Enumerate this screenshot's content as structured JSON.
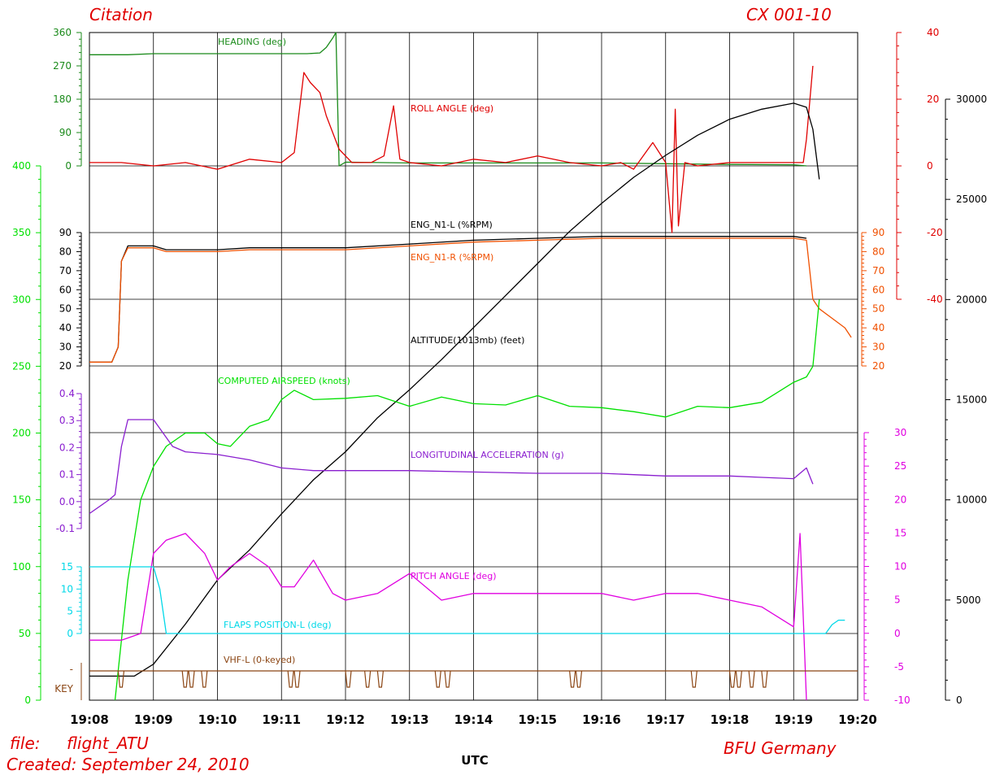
{
  "header": {
    "title_left": "Citation",
    "title_right": "CX  001-10",
    "file_prefix": "file:",
    "file_name": "flight_ATU",
    "created": "Created:  September  24,  2010",
    "footer_right": "BFU  Germany"
  },
  "colors": {
    "heading": "#1a8a1a",
    "roll": "#e00000",
    "n1l": "#000000",
    "n1r": "#f05000",
    "altitude": "#000000",
    "airspeed": "#00e000",
    "longacc": "#8a1ecf",
    "pitch": "#e000e0",
    "flaps": "#00d8e8",
    "vhf": "#8b4513",
    "grid": "#000000"
  },
  "chart_data": {
    "type": "line",
    "xlabel": "UTC",
    "x_ticks": [
      "19:08",
      "19:09",
      "19:10",
      "19:11",
      "19:12",
      "19:13",
      "19:14",
      "19:15",
      "19:16",
      "19:17",
      "19:18",
      "19:19",
      "19:20"
    ],
    "x_range_min": [
      0,
      12
    ],
    "axes": {
      "heading": {
        "ticks": [
          "360",
          "270",
          "180",
          "90",
          "0"
        ],
        "range": [
          0,
          360
        ]
      },
      "airspeed": {
        "ticks": [
          "400",
          "350",
          "300",
          "250",
          "200",
          "150",
          "100",
          "50",
          "0"
        ],
        "range": [
          0,
          400
        ]
      },
      "n1": {
        "ticks": [
          "90",
          "80",
          "70",
          "60",
          "50",
          "40",
          "30",
          "20"
        ],
        "range": [
          20,
          90
        ]
      },
      "longacc": {
        "ticks": [
          "0.4",
          "0.3",
          "0.2",
          "0.1",
          "0.0",
          "-0.1"
        ],
        "range": [
          -0.1,
          0.4
        ]
      },
      "flaps": {
        "ticks": [
          "15",
          "10",
          "5",
          "0"
        ],
        "range": [
          0,
          15
        ]
      },
      "vhf": {
        "key_label": "KEY",
        "mark": "-"
      },
      "roll": {
        "ticks": [
          "40",
          "20",
          "0",
          "-20",
          "-40"
        ],
        "range": [
          -40,
          40
        ]
      },
      "n1r": {
        "ticks": [
          "90",
          "80",
          "70",
          "60",
          "50",
          "40",
          "30",
          "20"
        ],
        "range": [
          20,
          90
        ]
      },
      "pitch": {
        "ticks": [
          "30",
          "25",
          "20",
          "15",
          "10",
          "5",
          "0",
          "-5",
          "-10"
        ],
        "range": [
          -10,
          30
        ]
      },
      "altitude": {
        "ticks": [
          "30000",
          "25000",
          "20000",
          "15000",
          "10000",
          "5000",
          "0"
        ],
        "range": [
          0,
          30000
        ]
      }
    },
    "series": [
      {
        "key": "heading",
        "name": "HEADING (deg)",
        "x": [
          0,
          0.6,
          1.0,
          2,
          3,
          3.4,
          3.6,
          3.7,
          3.8,
          3.85,
          3.9,
          4.0,
          5,
          7,
          8,
          9,
          10,
          11,
          11.2
        ],
        "y": [
          300,
          300,
          303,
          303,
          303,
          303,
          305,
          320,
          345,
          360,
          0,
          10,
          8,
          8,
          8,
          6,
          4,
          3,
          0
        ]
      },
      {
        "key": "roll",
        "name": "ROLL  ANGLE  (deg)",
        "x": [
          0,
          0.5,
          1.0,
          1.5,
          2.0,
          2.5,
          3.0,
          3.2,
          3.35,
          3.45,
          3.6,
          3.7,
          3.9,
          4.1,
          4.4,
          4.6,
          4.75,
          4.85,
          5.0,
          5.5,
          6.0,
          6.5,
          7.0,
          7.5,
          8.0,
          8.3,
          8.5,
          8.8,
          9.0,
          9.1,
          9.15,
          9.2,
          9.3,
          9.5,
          10,
          10.5,
          11,
          11.15,
          11.2,
          11.3
        ],
        "y": [
          1,
          1,
          0,
          1,
          -1,
          2,
          1,
          4,
          28,
          25,
          22,
          15,
          5,
          1,
          1,
          3,
          18,
          2,
          1,
          0,
          2,
          1,
          3,
          1,
          0,
          1,
          -1,
          7,
          1,
          -20,
          17,
          -18,
          1,
          0,
          1,
          1,
          1,
          1,
          8,
          30
        ]
      },
      {
        "key": "n1l",
        "name": "ENG_N1-L  (%RPM)",
        "x": [
          0,
          0.35,
          0.45,
          0.5,
          0.6,
          1.0,
          1.2,
          1.6,
          2.0,
          2.5,
          3.0,
          3.5,
          4,
          5,
          6,
          7,
          8,
          9,
          10,
          11,
          11.2
        ],
        "y": [
          22,
          22,
          30,
          75,
          83,
          83,
          81,
          81,
          81,
          82,
          82,
          82,
          82,
          84,
          86,
          87,
          88,
          88,
          88,
          88,
          87
        ]
      },
      {
        "key": "n1r",
        "name": "ENG_N1-R  (%RPM)",
        "x": [
          0,
          0.35,
          0.45,
          0.5,
          0.6,
          1.0,
          1.2,
          1.6,
          2.0,
          2.5,
          3.0,
          3.5,
          4,
          5,
          6,
          7,
          8,
          9,
          10,
          11,
          11.2,
          11.3,
          11.4,
          11.6,
          11.8,
          11.9
        ],
        "y": [
          22,
          22,
          30,
          75,
          82,
          82,
          80,
          80,
          80,
          81,
          81,
          81,
          81,
          83,
          85,
          86,
          87,
          87,
          87,
          87,
          86,
          55,
          50,
          45,
          40,
          35
        ]
      },
      {
        "key": "altitude",
        "name": "ALTITUDE(1013mb)  (feet)",
        "x": [
          0,
          0.7,
          1.0,
          1.5,
          2.0,
          2.5,
          3.0,
          3.5,
          4,
          4.5,
          5,
          5.5,
          6,
          6.5,
          7,
          7.5,
          8,
          8.5,
          9,
          9.5,
          10,
          10.5,
          11,
          11.2,
          11.3,
          11.4
        ],
        "y": [
          1200,
          1200,
          1800,
          3800,
          6000,
          7500,
          9300,
          11000,
          12400,
          14100,
          15500,
          17000,
          18600,
          20200,
          21800,
          23400,
          24800,
          26100,
          27200,
          28200,
          29000,
          29500,
          29800,
          29600,
          28500,
          26000
        ]
      },
      {
        "key": "airspeed",
        "name": "COMPUTED  AIRSPEED  (knots)",
        "x": [
          0.4,
          0.6,
          0.8,
          1.0,
          1.2,
          1.5,
          1.8,
          2.0,
          2.2,
          2.5,
          2.8,
          3.0,
          3.2,
          3.5,
          4,
          4.5,
          5,
          5.5,
          6,
          6.5,
          7,
          7.5,
          8,
          8.5,
          9,
          9.5,
          10,
          10.5,
          11,
          11.2,
          11.3,
          11.4
        ],
        "y": [
          0,
          90,
          150,
          175,
          190,
          200,
          200,
          192,
          190,
          205,
          210,
          225,
          232,
          225,
          226,
          228,
          220,
          227,
          222,
          221,
          228,
          220,
          219,
          216,
          212,
          220,
          219,
          223,
          238,
          242,
          250,
          300
        ]
      },
      {
        "key": "longacc",
        "name": "LONGITUDINAL  ACCELERATION  (g)",
        "x": [
          0,
          0.3,
          0.4,
          0.5,
          0.6,
          0.8,
          1.0,
          1.3,
          1.5,
          2.0,
          2.5,
          3.0,
          3.5,
          4,
          5,
          6,
          7,
          8,
          9,
          10,
          10.5,
          11,
          11.1,
          11.2,
          11.3
        ],
        "y": [
          -0.05,
          0.0,
          0.02,
          0.2,
          0.3,
          0.3,
          0.3,
          0.2,
          0.18,
          0.17,
          0.15,
          0.12,
          0.11,
          0.11,
          0.11,
          0.105,
          0.1,
          0.1,
          0.09,
          0.09,
          0.085,
          0.08,
          0.1,
          0.12,
          0.06
        ]
      },
      {
        "key": "pitch",
        "name": "PITCH  ANGLE  (deg)",
        "x": [
          0,
          0.5,
          0.8,
          1.0,
          1.2,
          1.5,
          1.8,
          2.0,
          2.2,
          2.5,
          2.8,
          3.0,
          3.2,
          3.5,
          3.8,
          4.0,
          4.5,
          5,
          5.5,
          6,
          6.5,
          7,
          7.5,
          8,
          8.5,
          9,
          9.5,
          10,
          10.5,
          11,
          11.1,
          11.2
        ],
        "y": [
          -1,
          -1,
          0,
          12,
          14,
          15,
          12,
          8,
          10,
          12,
          10,
          7,
          7,
          11,
          6,
          5,
          6,
          9,
          5,
          6,
          6,
          6,
          6,
          6,
          5,
          6,
          6,
          5,
          4,
          1,
          15,
          -10
        ]
      },
      {
        "key": "flaps",
        "name": "FLAPS  POSITION-L  (deg)",
        "x": [
          0,
          1.0,
          1.1,
          1.2,
          5,
          9,
          10,
          10.5,
          11,
          11.5,
          11.6,
          11.7,
          11.8
        ],
        "y": [
          15,
          15,
          10,
          0,
          0,
          0,
          0,
          0,
          0,
          0,
          2,
          3,
          3
        ]
      },
      {
        "key": "vhf",
        "name": "VHF-L  (0-keyed)",
        "x": [
          0,
          12
        ],
        "y": [
          1,
          1
        ]
      }
    ]
  }
}
